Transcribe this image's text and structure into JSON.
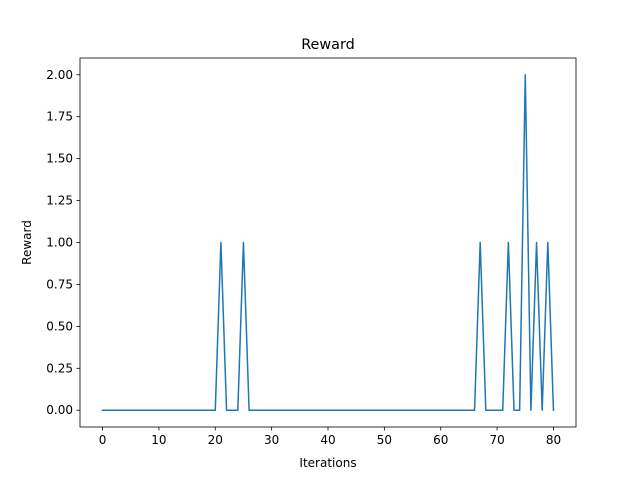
{
  "chart_data": {
    "type": "line",
    "title": "Reward",
    "xlabel": "Iterations",
    "ylabel": "Reward",
    "xlim": [
      -4,
      84
    ],
    "ylim": [
      -0.1,
      2.1
    ],
    "grid": false,
    "x_ticks": [
      0,
      10,
      20,
      30,
      40,
      50,
      60,
      70,
      80
    ],
    "x_tick_labels": [
      "0",
      "10",
      "20",
      "30",
      "40",
      "50",
      "60",
      "70",
      "80"
    ],
    "y_ticks": [
      0,
      0.25,
      0.5,
      0.75,
      1.0,
      1.25,
      1.5,
      1.75,
      2.0
    ],
    "y_tick_labels": [
      "0.00",
      "0.25",
      "0.50",
      "0.75",
      "1.00",
      "1.25",
      "1.50",
      "1.75",
      "2.00"
    ],
    "colors": {
      "line": "#1f77b4",
      "axes": "#000000",
      "background": "#ffffff"
    },
    "series": [
      {
        "x": [
          0,
          1,
          2,
          3,
          4,
          5,
          6,
          7,
          8,
          9,
          10,
          11,
          12,
          13,
          14,
          15,
          16,
          17,
          18,
          19,
          20,
          21,
          22,
          23,
          24,
          25,
          26,
          27,
          28,
          29,
          30,
          31,
          32,
          33,
          34,
          35,
          36,
          37,
          38,
          39,
          40,
          41,
          42,
          43,
          44,
          45,
          46,
          47,
          48,
          49,
          50,
          51,
          52,
          53,
          54,
          55,
          56,
          57,
          58,
          59,
          60,
          61,
          62,
          63,
          64,
          65,
          66,
          67,
          68,
          69,
          70,
          71,
          72,
          73,
          74,
          75,
          76,
          77,
          78,
          79,
          80
        ],
        "values": [
          0,
          0,
          0,
          0,
          0,
          0,
          0,
          0,
          0,
          0,
          0,
          0,
          0,
          0,
          0,
          0,
          0,
          0,
          0,
          0,
          0,
          1,
          0,
          0,
          0,
          1,
          0,
          0,
          0,
          0,
          0,
          0,
          0,
          0,
          0,
          0,
          0,
          0,
          0,
          0,
          0,
          0,
          0,
          0,
          0,
          0,
          0,
          0,
          0,
          0,
          0,
          0,
          0,
          0,
          0,
          0,
          0,
          0,
          0,
          0,
          0,
          0,
          0,
          0,
          0,
          0,
          0,
          1,
          0,
          0,
          0,
          0,
          1,
          0,
          0,
          2,
          0,
          1,
          0,
          1,
          0
        ]
      }
    ]
  }
}
